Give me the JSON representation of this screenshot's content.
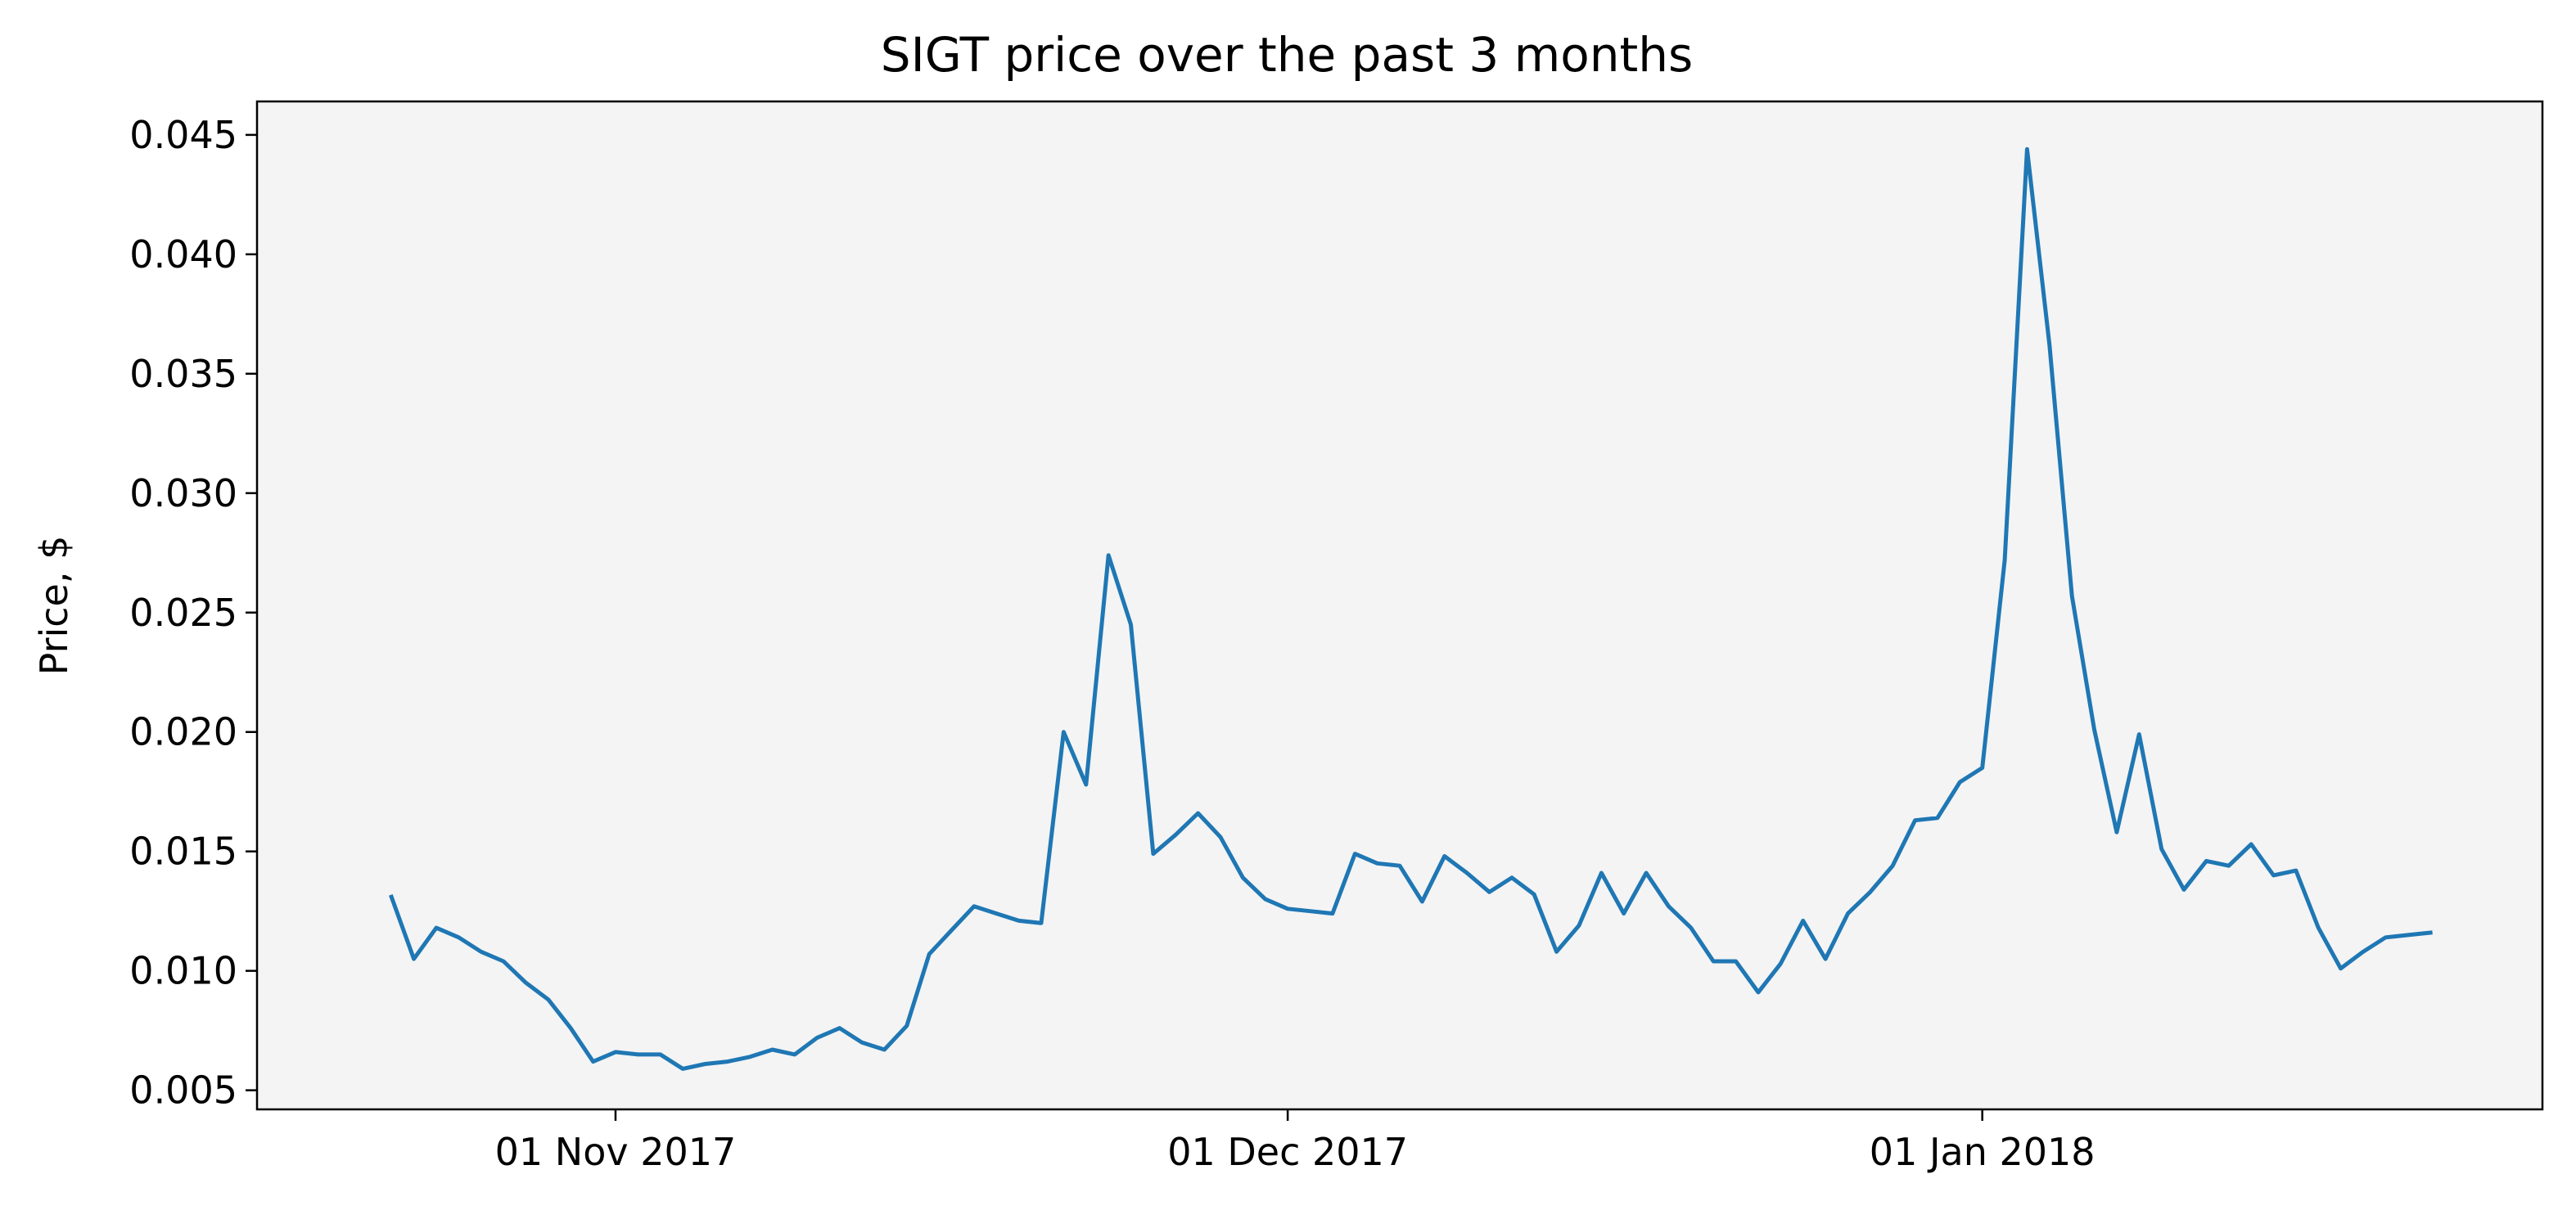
{
  "chart_data": {
    "type": "line",
    "title": "SIGT price over the past 3 months",
    "xlabel": "",
    "ylabel": "Price, $",
    "grid": false,
    "colors": {
      "line": "#1f77b4",
      "plot_background": "#f4f4f4",
      "figure_background": "#ffffff"
    },
    "xlim": [
      "2017-10-16",
      "2018-01-26"
    ],
    "ylim": [
      0.0042,
      0.0464
    ],
    "x_ticks": [
      {
        "date": "2017-11-01",
        "label": "01 Nov 2017"
      },
      {
        "date": "2017-12-01",
        "label": "01 Dec 2017"
      },
      {
        "date": "2018-01-01",
        "label": "01 Jan 2018"
      }
    ],
    "y_ticks": [
      {
        "value": 0.005,
        "label": "0.005"
      },
      {
        "value": 0.01,
        "label": "0.010"
      },
      {
        "value": 0.015,
        "label": "0.015"
      },
      {
        "value": 0.02,
        "label": "0.020"
      },
      {
        "value": 0.025,
        "label": "0.025"
      },
      {
        "value": 0.03,
        "label": "0.030"
      },
      {
        "value": 0.035,
        "label": "0.035"
      },
      {
        "value": 0.04,
        "label": "0.040"
      },
      {
        "value": 0.045,
        "label": "0.045"
      }
    ],
    "series": [
      {
        "x": [
          "2017-10-22",
          "2017-10-23",
          "2017-10-24",
          "2017-10-25",
          "2017-10-26",
          "2017-10-27",
          "2017-10-28",
          "2017-10-29",
          "2017-10-30",
          "2017-10-31",
          "2017-11-01",
          "2017-11-02",
          "2017-11-03",
          "2017-11-04",
          "2017-11-05",
          "2017-11-06",
          "2017-11-07",
          "2017-11-08",
          "2017-11-09",
          "2017-11-10",
          "2017-11-11",
          "2017-11-12",
          "2017-11-13",
          "2017-11-14",
          "2017-11-15",
          "2017-11-16",
          "2017-11-17",
          "2017-11-18",
          "2017-11-19",
          "2017-11-20",
          "2017-11-21",
          "2017-11-22",
          "2017-11-23",
          "2017-11-24",
          "2017-11-25",
          "2017-11-26",
          "2017-11-27",
          "2017-11-28",
          "2017-11-29",
          "2017-11-30",
          "2017-12-01",
          "2017-12-02",
          "2017-12-03",
          "2017-12-04",
          "2017-12-05",
          "2017-12-06",
          "2017-12-07",
          "2017-12-08",
          "2017-12-09",
          "2017-12-10",
          "2017-12-11",
          "2017-12-12",
          "2017-12-13",
          "2017-12-14",
          "2017-12-15",
          "2017-12-16",
          "2017-12-17",
          "2017-12-18",
          "2017-12-19",
          "2017-12-20",
          "2017-12-21",
          "2017-12-22",
          "2017-12-23",
          "2017-12-24",
          "2017-12-25",
          "2017-12-26",
          "2017-12-27",
          "2017-12-28",
          "2017-12-29",
          "2017-12-30",
          "2017-12-31",
          "2018-01-01",
          "2018-01-02",
          "2018-01-03",
          "2018-01-04",
          "2018-01-05",
          "2018-01-06",
          "2018-01-07",
          "2018-01-08",
          "2018-01-09",
          "2018-01-10",
          "2018-01-11",
          "2018-01-12",
          "2018-01-13",
          "2018-01-14",
          "2018-01-15",
          "2018-01-16",
          "2018-01-17",
          "2018-01-18",
          "2018-01-19",
          "2018-01-20",
          "2018-01-21"
        ],
        "values": [
          0.0131,
          0.0105,
          0.0118,
          0.0114,
          0.0108,
          0.0104,
          0.0095,
          0.0088,
          0.0076,
          0.0062,
          0.0066,
          0.0065,
          0.0065,
          0.0059,
          0.0061,
          0.0062,
          0.0064,
          0.0067,
          0.0065,
          0.0072,
          0.0076,
          0.007,
          0.0067,
          0.0077,
          0.0107,
          0.0117,
          0.0127,
          0.0124,
          0.0121,
          0.012,
          0.02,
          0.0178,
          0.0274,
          0.0245,
          0.0149,
          0.0157,
          0.0166,
          0.0156,
          0.0139,
          0.013,
          0.0126,
          0.0125,
          0.0124,
          0.0149,
          0.0145,
          0.0144,
          0.0129,
          0.0148,
          0.0141,
          0.0133,
          0.0139,
          0.0132,
          0.0108,
          0.0119,
          0.0141,
          0.0124,
          0.0141,
          0.0127,
          0.0118,
          0.0104,
          0.0104,
          0.0091,
          0.0103,
          0.0121,
          0.0105,
          0.0124,
          0.0133,
          0.0144,
          0.0163,
          0.0164,
          0.0179,
          0.0185,
          0.0272,
          0.0444,
          0.0362,
          0.0257,
          0.0201,
          0.0158,
          0.0199,
          0.0151,
          0.0134,
          0.0146,
          0.0144,
          0.0153,
          0.014,
          0.0142,
          0.0118,
          0.0101,
          0.0108,
          0.0114,
          0.0115,
          0.0116
        ]
      }
    ]
  }
}
